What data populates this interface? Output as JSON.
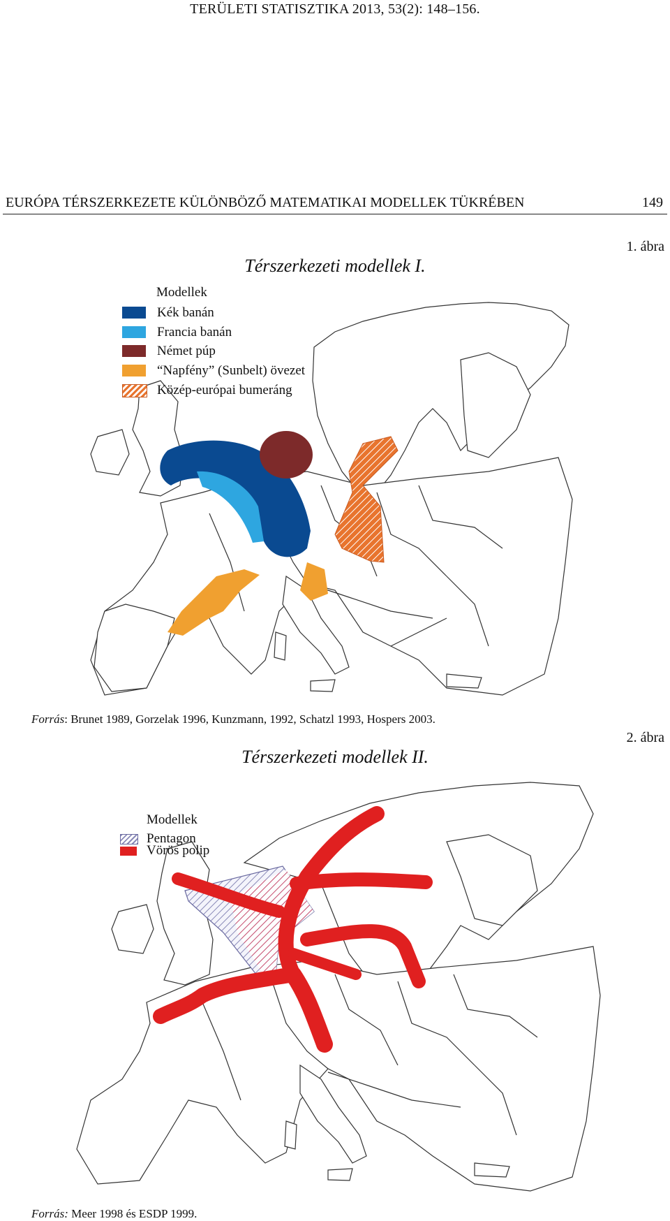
{
  "header": {
    "journal_ref": "TERÜLETI STATISZTIKA 2013, 53(2): 148–156.",
    "running_title": "EURÓPA TÉRSZERKEZETE KÜLÖNBÖZŐ MATEMATIKAI MODELLEK TÜKRÉBEN",
    "page_number": "149"
  },
  "figures": [
    {
      "number": "1. ábra",
      "title": "Térszerkezeti modellek I.",
      "legend_title": "Modellek",
      "legend": [
        {
          "label": "Kék banán",
          "color": "#0a4a91"
        },
        {
          "label": "Francia banán",
          "color": "#2ea6e0"
        },
        {
          "label": "Német púp",
          "color": "#7d2a2a"
        },
        {
          "label": "“Napfény” (Sunbelt) övezet",
          "color": "#f0a030"
        },
        {
          "label": "Közép-európai bumeráng",
          "color": "#e86a2a",
          "pattern": "hatched"
        }
      ],
      "source_label": "Forrás",
      "source_text": ": Brunet 1989, Gorzelak 1996, Kunzmann, 1992, Schatzl 1993, Hospers 2003."
    },
    {
      "number": "2. ábra",
      "title": "Térszerkezeti modellek II.",
      "legend_title": "Modellek",
      "legend": [
        {
          "label": "Pentagon",
          "color": "#8a8ab8",
          "pattern": "hatched"
        },
        {
          "label": "Vörös polip",
          "color": "#e02020"
        }
      ],
      "source_label": "Forrás:",
      "source_text": " Meer 1998 és ESDP 1999."
    }
  ]
}
